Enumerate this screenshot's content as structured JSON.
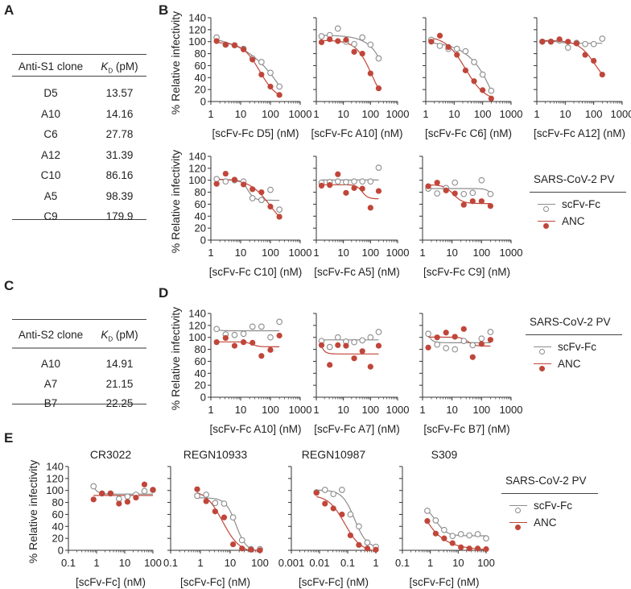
{
  "panel_letters": {
    "A": "A",
    "B": "B",
    "C": "C",
    "D": "D",
    "E": "E"
  },
  "tables": {
    "A": {
      "clone_header": "Anti-S1 clone",
      "kd_symbol": "K",
      "kd_sub": "D",
      "kd_unit": " (pM)",
      "rows": [
        {
          "clone": "D5",
          "kd": "13.57"
        },
        {
          "clone": "A10",
          "kd": "14.16"
        },
        {
          "clone": "C6",
          "kd": "27.78"
        },
        {
          "clone": "A12",
          "kd": "31.39"
        },
        {
          "clone": "C10",
          "kd": "86.16"
        },
        {
          "clone": "A5",
          "kd": "98.39"
        },
        {
          "clone": "C9",
          "kd": "179.9"
        }
      ]
    },
    "C": {
      "clone_header": "Anti-S2 clone",
      "kd_symbol": "K",
      "kd_sub": "D",
      "kd_unit": " (pM)",
      "rows": [
        {
          "clone": "A10",
          "kd": "14.91"
        },
        {
          "clone": "A7",
          "kd": "21.15"
        },
        {
          "clone": "B7",
          "kd": "22.25"
        }
      ]
    }
  },
  "legends": {
    "B": {
      "title": "SARS-CoV-2 PV",
      "items": [
        "scFv-Fc",
        "ANC"
      ]
    },
    "D": {
      "title": "SARS-CoV-2 PV",
      "items": [
        "scFv-Fc",
        "ANC"
      ]
    },
    "E": {
      "title": "SARS-CoV-2 PV",
      "items": [
        "scFv-Fc",
        "ANC"
      ]
    }
  },
  "colors": {
    "scFv-Fc": "#8c8c8c",
    "ANC": "#c0463a"
  },
  "chart_data": [
    {
      "panel": "B",
      "type": "scatter",
      "xscale": "log",
      "xlabel": "[scFv-Fc D5] (nM)",
      "ylabel": "% Relative infectivity",
      "xlim": [
        1,
        1000
      ],
      "ylim": [
        0,
        140
      ],
      "xticks": [
        "1",
        "10",
        "100",
        "1000"
      ],
      "yticks": [
        "0",
        "20",
        "40",
        "60",
        "80",
        "100",
        "120",
        "140"
      ],
      "series": [
        {
          "name": "scFv-Fc",
          "marker": "open",
          "x": [
            1.56,
            3.13,
            6.25,
            12.5,
            25,
            50,
            100,
            200
          ],
          "y": [
            107,
            95,
            94,
            88,
            72,
            66,
            48,
            25
          ]
        },
        {
          "name": "ANC",
          "marker": "filled",
          "x": [
            1.56,
            3.13,
            6.25,
            12.5,
            25,
            50,
            100,
            200
          ],
          "y": [
            101,
            95,
            94,
            87,
            70,
            45,
            25,
            11
          ]
        }
      ]
    },
    {
      "panel": "B",
      "type": "scatter",
      "xscale": "log",
      "xlabel": "[scFv-Fc A10] (nM)",
      "xlim": [
        1,
        1000
      ],
      "ylim": [
        0,
        140
      ],
      "xticks": [
        "1",
        "10",
        "100",
        "1000"
      ],
      "series": [
        {
          "name": "scFv-Fc",
          "marker": "open",
          "x": [
            1.56,
            3.13,
            6.25,
            12.5,
            25,
            50,
            100,
            200
          ],
          "y": [
            109,
            111,
            122,
            100,
            96,
            107,
            95,
            72
          ]
        },
        {
          "name": "ANC",
          "marker": "filled",
          "x": [
            1.56,
            3.13,
            6.25,
            12.5,
            25,
            50,
            100,
            200
          ],
          "y": [
            99,
            104,
            101,
            103,
            83,
            80,
            47,
            22
          ]
        }
      ]
    },
    {
      "panel": "B",
      "type": "scatter",
      "xscale": "log",
      "xlabel": "[scFv-Fc C6] (nM)",
      "xlim": [
        1,
        1000
      ],
      "ylim": [
        0,
        140
      ],
      "xticks": [
        "1",
        "10",
        "100",
        "1000"
      ],
      "series": [
        {
          "name": "scFv-Fc",
          "marker": "open",
          "x": [
            1.56,
            3.13,
            6.25,
            12.5,
            25,
            50,
            100,
            200
          ],
          "y": [
            103,
            93,
            88,
            88,
            84,
            66,
            45,
            18
          ]
        },
        {
          "name": "ANC",
          "marker": "filled",
          "x": [
            1.56,
            3.13,
            6.25,
            12.5,
            25,
            50,
            100,
            200
          ],
          "y": [
            100,
            110,
            91,
            78,
            52,
            34,
            19,
            5
          ]
        }
      ]
    },
    {
      "panel": "B",
      "type": "scatter",
      "xscale": "log",
      "xlabel": "[scFv-Fc A12] (nM)",
      "xlim": [
        1,
        1000
      ],
      "ylim": [
        0,
        140
      ],
      "xticks": [
        "1",
        "10",
        "100",
        "1000"
      ],
      "series": [
        {
          "name": "scFv-Fc",
          "marker": "open",
          "x": [
            1.56,
            3.13,
            6.25,
            12.5,
            25,
            50,
            100,
            200
          ],
          "y": [
            100,
            100,
            102,
            90,
            98,
            96,
            96,
            105
          ]
        },
        {
          "name": "ANC",
          "marker": "filled",
          "x": [
            1.56,
            3.13,
            6.25,
            12.5,
            25,
            50,
            100,
            200
          ],
          "y": [
            100,
            100,
            104,
            100,
            97,
            78,
            68,
            45
          ]
        }
      ]
    },
    {
      "panel": "B",
      "type": "scatter",
      "xscale": "log",
      "xlabel": "[scFv-Fc C10] (nM)",
      "ylabel": "% Relative infectivity",
      "xlim": [
        1,
        1000
      ],
      "ylim": [
        0,
        140
      ],
      "xticks": [
        "1",
        "10",
        "100",
        "1000"
      ],
      "yticks": [
        "0",
        "20",
        "40",
        "60",
        "80",
        "100",
        "120",
        "140"
      ],
      "series": [
        {
          "name": "scFv-Fc",
          "marker": "open",
          "x": [
            1.56,
            3.13,
            6.25,
            12.5,
            25,
            50,
            100,
            200
          ],
          "y": [
            102,
            98,
            100,
            98,
            70,
            67,
            84,
            51
          ]
        },
        {
          "name": "ANC",
          "marker": "filled",
          "x": [
            1.56,
            3.13,
            6.25,
            12.5,
            25,
            50,
            100,
            200
          ],
          "y": [
            94,
            111,
            101,
            93,
            85,
            80,
            56,
            39
          ]
        }
      ]
    },
    {
      "panel": "B",
      "type": "scatter",
      "xscale": "log",
      "xlabel": "[scFv-Fc A5] (nM)",
      "xlim": [
        1,
        1000
      ],
      "ylim": [
        0,
        140
      ],
      "xticks": [
        "1",
        "10",
        "100",
        "1000"
      ],
      "series": [
        {
          "name": "scFv-Fc",
          "marker": "open",
          "x": [
            1.56,
            3.13,
            6.25,
            12.5,
            25,
            50,
            100,
            200
          ],
          "y": [
            96,
            97,
            98,
            97,
            98,
            98,
            98,
            121
          ]
        },
        {
          "name": "ANC",
          "marker": "filled",
          "x": [
            1.56,
            3.13,
            6.25,
            12.5,
            25,
            50,
            100,
            200
          ],
          "y": [
            91,
            92,
            110,
            79,
            87,
            86,
            54,
            82
          ]
        }
      ]
    },
    {
      "panel": "B",
      "type": "scatter",
      "xscale": "log",
      "xlabel": "[scFv-Fc C9] (nM)",
      "xlim": [
        1,
        1000
      ],
      "ylim": [
        0,
        140
      ],
      "xticks": [
        "1",
        "10",
        "100",
        "1000"
      ],
      "series": [
        {
          "name": "scFv-Fc",
          "marker": "open",
          "x": [
            1.56,
            3.13,
            6.25,
            12.5,
            25,
            50,
            100,
            200
          ],
          "y": [
            86,
            78,
            87,
            96,
            77,
            79,
            100,
            77
          ]
        },
        {
          "name": "ANC",
          "marker": "filled",
          "x": [
            1.56,
            3.13,
            6.25,
            12.5,
            25,
            50,
            100,
            200
          ],
          "y": [
            90,
            96,
            83,
            78,
            59,
            65,
            65,
            57
          ]
        }
      ]
    },
    {
      "panel": "D",
      "type": "scatter",
      "xscale": "log",
      "xlabel": "[scFv-Fc A10] (nM)",
      "ylabel": "% Relative infectivity",
      "xlim": [
        1,
        1000
      ],
      "ylim": [
        0,
        140
      ],
      "xticks": [
        "1",
        "10",
        "100",
        "1000"
      ],
      "yticks": [
        "0",
        "20",
        "40",
        "60",
        "80",
        "100",
        "120",
        "140"
      ],
      "series": [
        {
          "name": "scFv-Fc",
          "marker": "open",
          "x": [
            1.56,
            3.13,
            6.25,
            12.5,
            25,
            50,
            100,
            200
          ],
          "y": [
            114,
            105,
            104,
            106,
            118,
            118,
            100,
            126
          ]
        },
        {
          "name": "ANC",
          "marker": "filled",
          "x": [
            1.56,
            3.13,
            6.25,
            12.5,
            25,
            50,
            100,
            200
          ],
          "y": [
            92,
            99,
            86,
            92,
            91,
            69,
            79,
            103
          ]
        }
      ]
    },
    {
      "panel": "D",
      "type": "scatter",
      "xscale": "log",
      "xlabel": "[scFv-Fc A7] (nM)",
      "xlim": [
        1,
        1000
      ],
      "ylim": [
        0,
        140
      ],
      "xticks": [
        "1",
        "10",
        "100",
        "1000"
      ],
      "series": [
        {
          "name": "scFv-Fc",
          "marker": "open",
          "x": [
            1.56,
            3.13,
            6.25,
            12.5,
            25,
            50,
            100,
            200
          ],
          "y": [
            94,
            84,
            100,
            93,
            92,
            95,
            100,
            109
          ]
        },
        {
          "name": "ANC",
          "marker": "filled",
          "x": [
            1.56,
            3.13,
            6.25,
            12.5,
            25,
            50,
            100,
            200
          ],
          "y": [
            87,
            54,
            87,
            86,
            65,
            77,
            51,
            86
          ]
        }
      ]
    },
    {
      "panel": "D",
      "type": "scatter",
      "xscale": "log",
      "xlabel": "[scFv-Fc B7] (nM)",
      "xlim": [
        1,
        1000
      ],
      "ylim": [
        0,
        140
      ],
      "xticks": [
        "1",
        "10",
        "100",
        "1000"
      ],
      "series": [
        {
          "name": "scFv-Fc",
          "marker": "open",
          "x": [
            1.56,
            3.13,
            6.25,
            12.5,
            25,
            50,
            100,
            200
          ],
          "y": [
            106,
            88,
            82,
            80,
            94,
            87,
            98,
            109
          ]
        },
        {
          "name": "ANC",
          "marker": "filled",
          "x": [
            1.56,
            3.13,
            6.25,
            12.5,
            25,
            50,
            100,
            200
          ],
          "y": [
            83,
            100,
            108,
            101,
            114,
            67,
            89,
            96
          ]
        }
      ]
    },
    {
      "panel": "E",
      "type": "scatter",
      "xscale": "log",
      "title": "CR3022",
      "xlabel": "[scFv-Fc] (nM)",
      "ylabel": "% Relative infectivity",
      "xlim": [
        0.1,
        100
      ],
      "ylim": [
        0,
        140
      ],
      "xticks": [
        "0.1",
        "1",
        "10",
        "100"
      ],
      "yticks": [
        "0",
        "20",
        "40",
        "60",
        "80",
        "100",
        "120",
        "140"
      ],
      "series": [
        {
          "name": "scFv-Fc",
          "marker": "open",
          "x": [
            0.78,
            1.56,
            3.13,
            6.25,
            12.5,
            25,
            50,
            100
          ],
          "y": [
            107,
            95,
            95,
            86,
            90,
            93,
            99,
            101
          ]
        },
        {
          "name": "ANC",
          "marker": "filled",
          "x": [
            0.78,
            1.56,
            3.13,
            6.25,
            12.5,
            25,
            50,
            100
          ],
          "y": [
            85,
            95,
            95,
            78,
            81,
            88,
            110,
            101
          ]
        }
      ]
    },
    {
      "panel": "E",
      "type": "scatter",
      "xscale": "log",
      "title": "REGN10933",
      "xlabel": "[scFv-Fc] (nM)",
      "xlim": [
        0.1,
        100
      ],
      "ylim": [
        0,
        140
      ],
      "xticks": [
        "0.1",
        "1",
        "10",
        "100"
      ],
      "series": [
        {
          "name": "scFv-Fc",
          "marker": "open",
          "x": [
            0.78,
            1.56,
            3.13,
            6.25,
            12.5,
            25,
            50,
            100
          ],
          "y": [
            91,
            93,
            79,
            78,
            55,
            17,
            2,
            2
          ]
        },
        {
          "name": "ANC",
          "marker": "filled",
          "x": [
            0.78,
            1.56,
            3.13,
            6.25,
            12.5,
            25,
            50,
            100
          ],
          "y": [
            102,
            82,
            65,
            55,
            10,
            3,
            1,
            0
          ]
        }
      ]
    },
    {
      "panel": "E",
      "type": "scatter",
      "xscale": "log",
      "title": "REGN10987",
      "xlabel": "[scFv-Fc] (nM)",
      "xlim": [
        0.001,
        1
      ],
      "ylim": [
        0,
        140
      ],
      "xticks": [
        "0.001",
        "0.01",
        "0.1",
        "1"
      ],
      "series": [
        {
          "name": "scFv-Fc",
          "marker": "open",
          "x": [
            0.0078,
            0.0156,
            0.031,
            0.0625,
            0.125,
            0.25,
            0.5,
            1
          ],
          "y": [
            97,
            101,
            94,
            101,
            60,
            40,
            13,
            6
          ]
        },
        {
          "name": "ANC",
          "marker": "filled",
          "x": [
            0.0078,
            0.0156,
            0.031,
            0.0625,
            0.125,
            0.25,
            0.5,
            1
          ],
          "y": [
            96,
            78,
            70,
            60,
            25,
            9,
            3,
            1
          ]
        }
      ]
    },
    {
      "panel": "E",
      "type": "scatter",
      "xscale": "log",
      "title": "S309",
      "xlabel": "[scFv-Fc] (nM)",
      "xlim": [
        0.1,
        100
      ],
      "ylim": [
        0,
        140
      ],
      "xticks": [
        "0.1",
        "1",
        "10",
        "100"
      ],
      "series": [
        {
          "name": "scFv-Fc",
          "marker": "open",
          "x": [
            0.78,
            1.56,
            3.13,
            6.25,
            12.5,
            25,
            50,
            100
          ],
          "y": [
            66,
            50,
            34,
            24,
            27,
            25,
            27,
            20
          ]
        },
        {
          "name": "ANC",
          "marker": "filled",
          "x": [
            0.78,
            1.56,
            3.13,
            6.25,
            12.5,
            25,
            50,
            100
          ],
          "y": [
            49,
            28,
            20,
            12,
            5,
            3,
            3,
            2
          ]
        }
      ]
    }
  ]
}
